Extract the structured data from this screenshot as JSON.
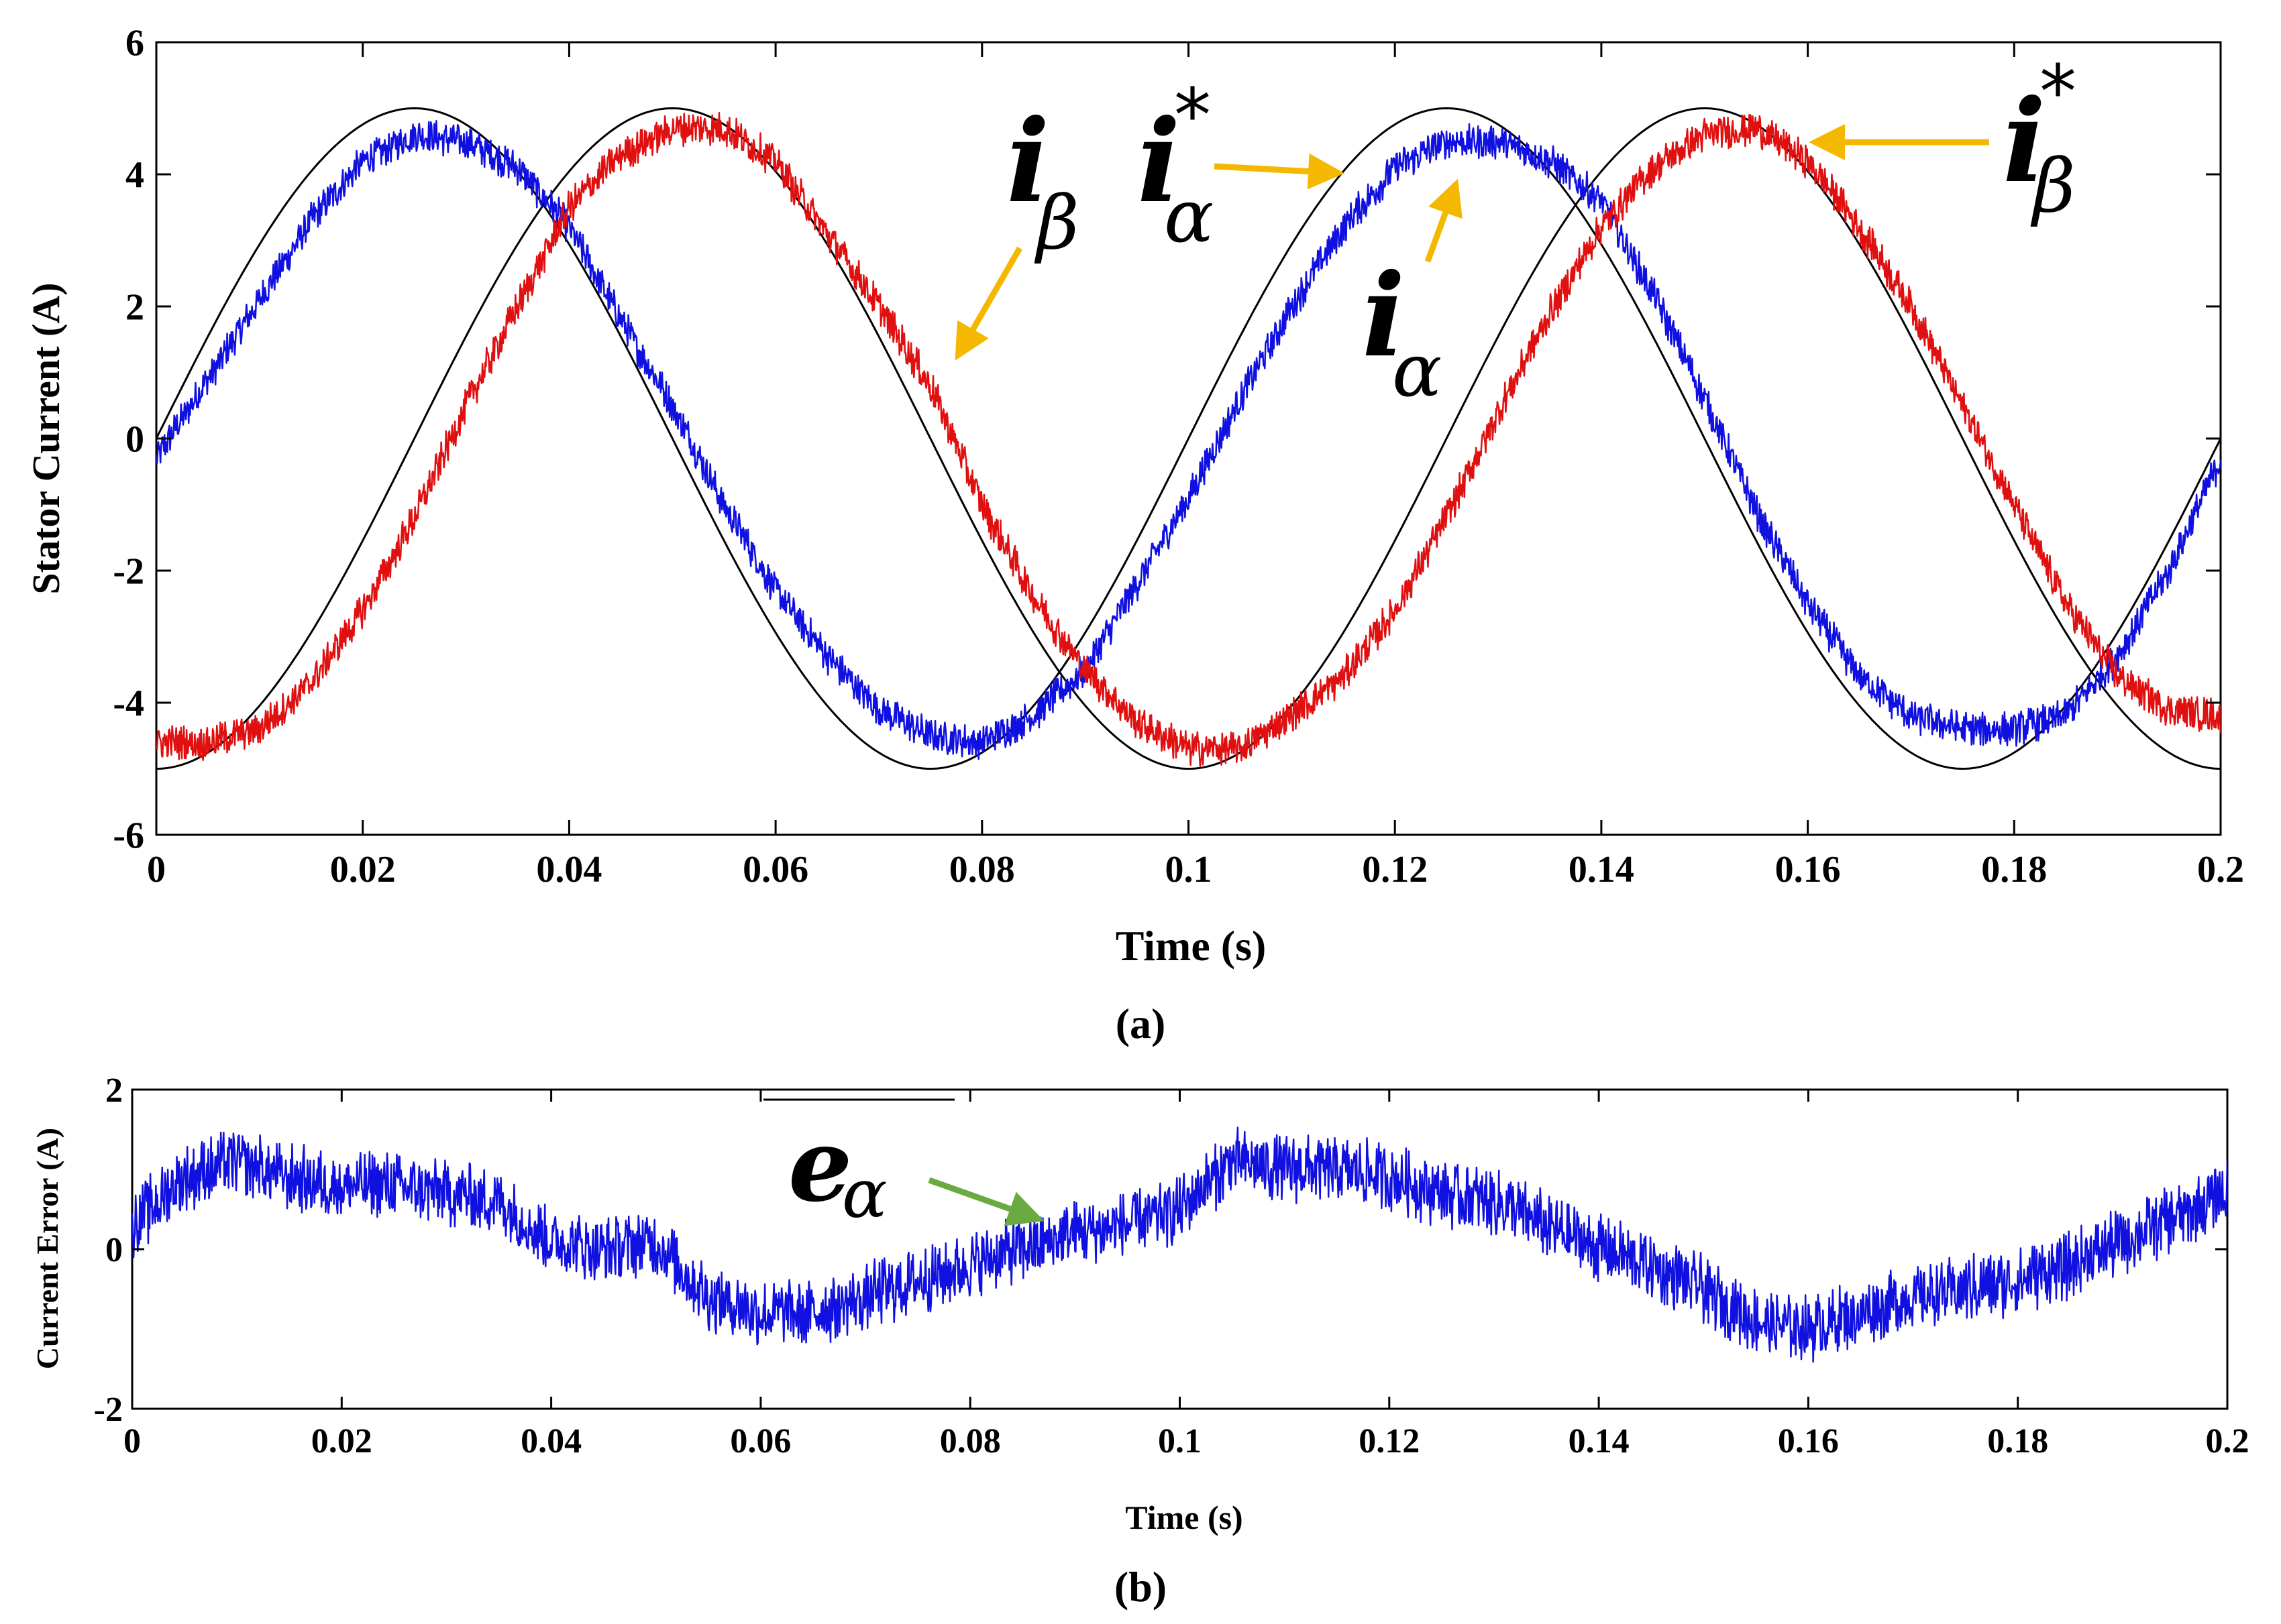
{
  "chart_data": [
    {
      "id": "a",
      "type": "line",
      "panel_label": "(a)",
      "xlabel": "Time (s)",
      "ylabel": "Stator Current (A)",
      "xlim": [
        0,
        0.2
      ],
      "ylim": [
        -6,
        6
      ],
      "x_ticks": [
        "0",
        "0.02",
        "0.04",
        "0.06",
        "0.08",
        "0.1",
        "0.12",
        "0.14",
        "0.16",
        "0.18",
        "0.2"
      ],
      "x_tick_values": [
        0,
        0.02,
        0.04,
        0.06,
        0.08,
        0.1,
        0.12,
        0.14,
        0.16,
        0.18,
        0.2
      ],
      "y_ticks": [
        "6",
        "4",
        "2",
        "0",
        "-2",
        "-4",
        "-6"
      ],
      "y_tick_values": [
        6,
        4,
        2,
        0,
        -2,
        -4,
        -6
      ],
      "series": [
        {
          "name": "i_alpha_ref",
          "color": "#000000",
          "kind": "sine",
          "amplitude": 5,
          "frequency_hz": 10,
          "phase": 0
        },
        {
          "name": "i_beta_ref",
          "color": "#000000",
          "kind": "sine",
          "amplitude": 5,
          "frequency_hz": 10,
          "phase": -1.5708
        },
        {
          "name": "i_alpha",
          "color": "#1010e0",
          "kind": "sampled",
          "x": [
            0,
            0.005,
            0.01,
            0.015,
            0.02,
            0.025,
            0.03,
            0.035,
            0.04,
            0.045,
            0.05,
            0.055,
            0.06,
            0.065,
            0.07,
            0.075,
            0.08,
            0.085,
            0.09,
            0.095,
            0.1,
            0.105,
            0.11,
            0.115,
            0.12,
            0.125,
            0.13,
            0.135,
            0.14,
            0.145,
            0.15,
            0.155,
            0.16,
            0.165,
            0.17,
            0.175,
            0.18,
            0.185,
            0.19,
            0.195,
            0.2
          ],
          "values": [
            -0.3,
            0.9,
            2.1,
            3.3,
            4.2,
            4.6,
            4.5,
            4.1,
            3.2,
            1.8,
            0.5,
            -1.0,
            -2.3,
            -3.3,
            -4.1,
            -4.5,
            -4.6,
            -4.2,
            -3.5,
            -2.2,
            -0.9,
            0.6,
            2.0,
            3.2,
            4.1,
            4.5,
            4.5,
            4.2,
            3.6,
            2.2,
            0.6,
            -1.1,
            -2.5,
            -3.6,
            -4.2,
            -4.4,
            -4.4,
            -4.2,
            -3.3,
            -2.0,
            -0.3
          ]
        },
        {
          "name": "i_beta",
          "color": "#e01010",
          "kind": "sampled",
          "x": [
            0,
            0.005,
            0.01,
            0.015,
            0.02,
            0.025,
            0.03,
            0.035,
            0.04,
            0.045,
            0.05,
            0.055,
            0.06,
            0.065,
            0.07,
            0.075,
            0.08,
            0.085,
            0.09,
            0.095,
            0.1,
            0.105,
            0.11,
            0.115,
            0.12,
            0.125,
            0.13,
            0.135,
            0.14,
            0.145,
            0.15,
            0.155,
            0.16,
            0.165,
            0.17,
            0.175,
            0.18,
            0.185,
            0.19,
            0.195,
            0.2
          ],
          "values": [
            -4.6,
            -4.6,
            -4.4,
            -3.7,
            -2.6,
            -1.2,
            0.5,
            2.0,
            3.5,
            4.3,
            4.7,
            4.7,
            4.2,
            3.1,
            2.0,
            0.8,
            -1.0,
            -2.4,
            -3.5,
            -4.3,
            -4.7,
            -4.7,
            -4.2,
            -3.6,
            -2.6,
            -1.2,
            0.4,
            1.9,
            3.2,
            4.1,
            4.6,
            4.7,
            4.2,
            3.2,
            2.0,
            0.5,
            -1.0,
            -2.5,
            -3.6,
            -4.1,
            -4.2
          ]
        }
      ],
      "annotations": [
        {
          "symbol": "i",
          "sub": "β",
          "star": ""
        },
        {
          "symbol": "i",
          "sub": "α",
          "star": "*"
        },
        {
          "symbol": "i",
          "sub": "α",
          "star": ""
        },
        {
          "symbol": "i",
          "sub": "β",
          "star": "*"
        }
      ],
      "annotation_color": "#f5b800"
    },
    {
      "id": "b",
      "type": "line",
      "panel_label": "(b)",
      "xlabel": "Time (s)",
      "ylabel": "Current Error (A)",
      "xlim": [
        0,
        0.2
      ],
      "ylim": [
        -2,
        2
      ],
      "x_ticks": [
        "0",
        "0.02",
        "0.04",
        "0.06",
        "0.08",
        "0.1",
        "0.12",
        "0.14",
        "0.16",
        "0.18",
        "0.2"
      ],
      "x_tick_values": [
        0,
        0.02,
        0.04,
        0.06,
        0.08,
        0.1,
        0.12,
        0.14,
        0.16,
        0.18,
        0.2
      ],
      "y_ticks": [
        "2",
        "0",
        "-2"
      ],
      "y_tick_values": [
        2,
        0,
        -2
      ],
      "series": [
        {
          "name": "e_alpha",
          "color": "#1010e0",
          "kind": "sampled",
          "x": [
            0,
            0.005,
            0.01,
            0.015,
            0.02,
            0.025,
            0.03,
            0.035,
            0.04,
            0.045,
            0.05,
            0.055,
            0.06,
            0.065,
            0.07,
            0.075,
            0.08,
            0.085,
            0.09,
            0.095,
            0.1,
            0.105,
            0.11,
            0.115,
            0.12,
            0.125,
            0.13,
            0.135,
            0.14,
            0.145,
            0.15,
            0.155,
            0.16,
            0.165,
            0.17,
            0.175,
            0.18,
            0.185,
            0.19,
            0.195,
            0.2
          ],
          "values": [
            0.3,
            0.9,
            1.1,
            0.9,
            0.8,
            0.8,
            0.7,
            0.6,
            0.1,
            0.0,
            0.1,
            -0.6,
            -0.8,
            -0.8,
            -0.6,
            -0.4,
            -0.2,
            0.0,
            0.2,
            0.3,
            0.5,
            1.1,
            1.0,
            1.0,
            0.9,
            0.7,
            0.6,
            0.3,
            0.0,
            -0.2,
            -0.5,
            -0.9,
            -1.0,
            -0.8,
            -0.6,
            -0.5,
            -0.4,
            -0.2,
            0.1,
            0.4,
            0.7
          ]
        }
      ],
      "annotations": [
        {
          "symbol": "e",
          "sub": "α",
          "star": ""
        }
      ],
      "annotation_color": "#6aaa40"
    }
  ]
}
